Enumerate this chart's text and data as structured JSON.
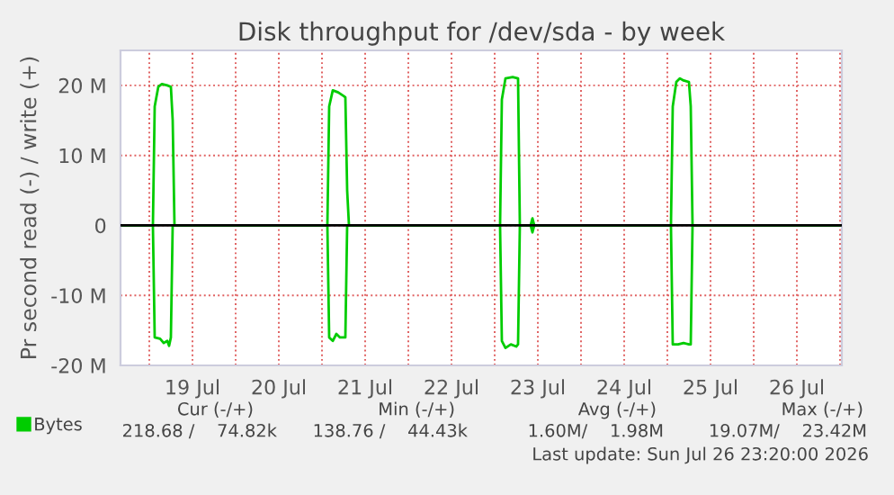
{
  "chart_data": {
    "type": "line",
    "title": "Disk throughput for /dev/sda - by week",
    "ylabel": "Pr second read (-) / write (+)",
    "xlim": [
      "2026-07-18T16:00",
      "2026-07-27T00:30"
    ],
    "ylim": [
      -20,
      25
    ],
    "yticks": [
      {
        "value": -20,
        "label": "-20 M"
      },
      {
        "value": -10,
        "label": "-10 M"
      },
      0,
      {
        "value": 10,
        "label": "10 M"
      },
      {
        "value": 20,
        "label": "20 M"
      }
    ],
    "xticks": [
      {
        "value": "2026-07-19T00:00",
        "label": null
      },
      {
        "value": "2026-07-19T12:00",
        "label": "19 Jul"
      },
      {
        "value": "2026-07-20T00:00",
        "label": null
      },
      {
        "value": "2026-07-20T12:00",
        "label": "20 Jul"
      },
      {
        "value": "2026-07-21T00:00",
        "label": null
      },
      {
        "value": "2026-07-21T12:00",
        "label": "21 Jul"
      },
      {
        "value": "2026-07-22T00:00",
        "label": null
      },
      {
        "value": "2026-07-22T12:00",
        "label": "22 Jul"
      },
      {
        "value": "2026-07-23T00:00",
        "label": null
      },
      {
        "value": "2026-07-23T12:00",
        "label": "23 Jul"
      },
      {
        "value": "2026-07-24T00:00",
        "label": null
      },
      {
        "value": "2026-07-24T12:00",
        "label": "24 Jul"
      },
      {
        "value": "2026-07-25T00:00",
        "label": null
      },
      {
        "value": "2026-07-25T12:00",
        "label": "25 Jul"
      },
      {
        "value": "2026-07-26T00:00",
        "label": null
      },
      {
        "value": "2026-07-26T12:00",
        "label": "26 Jul"
      },
      {
        "value": "2026-07-27T00:00",
        "label": null
      }
    ],
    "grid": true,
    "legend": "bottom left",
    "marker": "none",
    "line_style": "solid",
    "ref_lines": [
      {
        "axis": "y",
        "value": 0,
        "color": "#000000"
      }
    ],
    "series": [
      {
        "name": "Bytes",
        "color": "#00cc00",
        "x": [
          "2026-07-18T16:00",
          "2026-07-19T01:00",
          "2026-07-19T01:30",
          "2026-07-19T02:30",
          "2026-07-19T03:30",
          "2026-07-19T05:00",
          "2026-07-19T06:00",
          "2026-07-19T06:30",
          "2026-07-19T07:00",
          "2026-07-21T01:30",
          "2026-07-21T02:00",
          "2026-07-21T03:00",
          "2026-07-21T04:30",
          "2026-07-21T06:00",
          "2026-07-21T06:30",
          "2026-07-21T07:00",
          "2026-07-21T07:30",
          "2026-07-23T01:30",
          "2026-07-23T02:00",
          "2026-07-23T03:00",
          "2026-07-23T05:00",
          "2026-07-23T06:30",
          "2026-07-23T07:00",
          "2026-07-23T10:00",
          "2026-07-23T10:30",
          "2026-07-23T11:00",
          "2026-07-25T01:00",
          "2026-07-25T01:30",
          "2026-07-25T02:30",
          "2026-07-25T03:30",
          "2026-07-25T04:30",
          "2026-07-25T06:00",
          "2026-07-25T06:30",
          "2026-07-25T07:00",
          "2026-07-27T00:30"
        ],
        "values": [
          0,
          0,
          17,
          19.8,
          20.2,
          20,
          19.8,
          15,
          0,
          0,
          17,
          19.3,
          19,
          18.5,
          18.3,
          5,
          0,
          0,
          18,
          21,
          21.2,
          21,
          0,
          0,
          1,
          0,
          0,
          17,
          20.5,
          21,
          20.7,
          20.5,
          17,
          0,
          0
        ]
      },
      {
        "color": "#00cc00",
        "x": [
          "2026-07-18T16:00",
          "2026-07-19T01:00",
          "2026-07-19T01:30",
          "2026-07-19T03:00",
          "2026-07-19T04:00",
          "2026-07-19T05:00",
          "2026-07-19T05:30",
          "2026-07-19T06:00",
          "2026-07-19T06:30",
          "2026-07-21T01:30",
          "2026-07-21T02:00",
          "2026-07-21T03:00",
          "2026-07-21T04:00",
          "2026-07-21T05:00",
          "2026-07-21T06:30",
          "2026-07-21T07:00",
          "2026-07-23T01:30",
          "2026-07-23T02:00",
          "2026-07-23T03:00",
          "2026-07-23T04:30",
          "2026-07-23T06:00",
          "2026-07-23T06:30",
          "2026-07-23T07:00",
          "2026-07-23T10:00",
          "2026-07-23T10:30",
          "2026-07-23T11:00",
          "2026-07-25T01:00",
          "2026-07-25T01:30",
          "2026-07-25T03:00",
          "2026-07-25T04:30",
          "2026-07-25T06:00",
          "2026-07-25T06:30",
          "2026-07-25T07:00",
          "2026-07-27T00:30"
        ],
        "values": [
          0,
          0,
          -16,
          -16.2,
          -16.8,
          -16.5,
          -17.2,
          -16,
          0,
          0,
          -16,
          -16.5,
          -15.5,
          -16,
          -16,
          0,
          0,
          -16.5,
          -17.5,
          -17,
          -17.3,
          -17,
          0,
          0,
          -1,
          0,
          0,
          -17,
          -17,
          -16.8,
          -17,
          -17,
          0,
          0
        ]
      }
    ],
    "annotations": [
      "Cur (-/+)",
      "Min (-/+)",
      "Avg (-/+)",
      "Max (-/+)",
      "218.68 /    74.82k",
      "138.76 /    44.43k",
      "1.60M/    1.98M",
      "19.07M/    23.42M",
      "Last update: Sun Jul 26 23:20:00 2026"
    ]
  }
}
